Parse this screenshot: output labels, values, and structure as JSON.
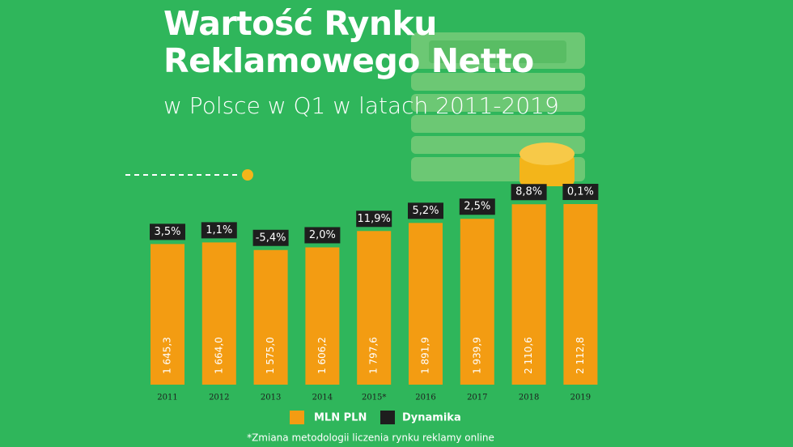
{
  "chart_data": {
    "type": "bar",
    "title": "Wartość Rynku Reklamowego Netto",
    "subtitle": "w Polsce w Q1 w latach 2011-2019",
    "categories": [
      "2011",
      "2012",
      "2013",
      "2014",
      "2015*",
      "2016",
      "2017",
      "2018",
      "2019"
    ],
    "series": [
      {
        "name": "MLN PLN",
        "color": "#f39c12",
        "values": [
          1645.3,
          1664.0,
          1575.0,
          1606.2,
          1797.6,
          1891.9,
          1939.9,
          2110.6,
          2112.8
        ],
        "value_labels": [
          "1 645,3",
          "1 664,0",
          "1 575,0",
          "1 606,2",
          "1 797,6",
          "1 891,9",
          "1 939,9",
          "2 110,6",
          "2 112,8"
        ]
      },
      {
        "name": "Dynamika",
        "color": "#1e1e1e",
        "values": [
          3.5,
          1.1,
          -5.4,
          2.0,
          11.9,
          5.2,
          2.5,
          8.8,
          0.1
        ],
        "value_labels": [
          "3,5%",
          "1,1%",
          "-5,4%",
          "2,0%",
          "11,9%",
          "5,2%",
          "2,5%",
          "8,8%",
          "0,1%"
        ]
      }
    ],
    "footnote": "*Zmiana metodologii liczenia rynku reklamy online"
  }
}
